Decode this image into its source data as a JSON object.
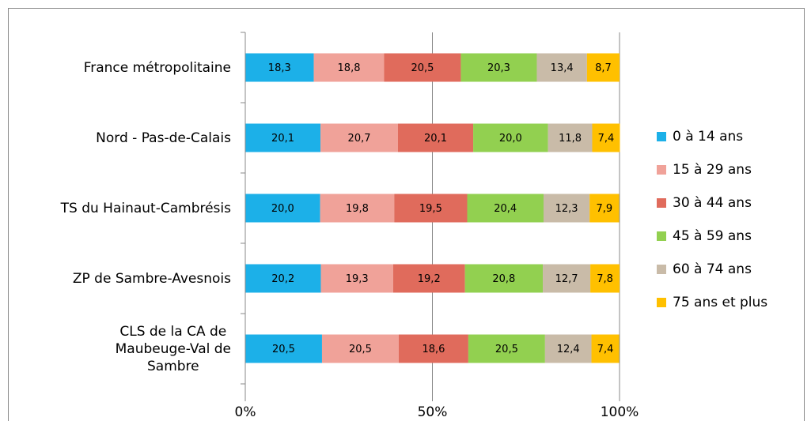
{
  "chart_data": {
    "type": "stacked_bar_horizontal",
    "categories": [
      "France métropolitaine",
      "Nord - Pas-de-Calais",
      "TS du Hainaut-Cambrésis",
      "ZP de Sambre-Avesnois",
      "CLS de la CA de\nMaubeuge-Val de\nSambre"
    ],
    "series": [
      {
        "name": "0 à 14 ans",
        "color": "#1cb0e8",
        "values": [
          18.3,
          20.1,
          20.0,
          20.2,
          20.5
        ],
        "value_labels": [
          "18,3",
          "20,1",
          "20,0",
          "20,2",
          "20,5"
        ]
      },
      {
        "name": "15 à 29 ans",
        "color": "#f0a299",
        "values": [
          18.8,
          20.7,
          19.8,
          19.3,
          20.5
        ],
        "value_labels": [
          "18,8",
          "20,7",
          "19,8",
          "19,3",
          "20,5"
        ]
      },
      {
        "name": "30 à 44 ans",
        "color": "#e06b5c",
        "values": [
          20.5,
          20.1,
          19.5,
          19.2,
          18.6
        ],
        "value_labels": [
          "20,5",
          "20,1",
          "19,5",
          "19,2",
          "18,6"
        ]
      },
      {
        "name": "45 à 59 ans",
        "color": "#92d050",
        "values": [
          20.3,
          20.0,
          20.4,
          20.8,
          20.5
        ],
        "value_labels": [
          "20,3",
          "20,0",
          "20,4",
          "20,8",
          "20,5"
        ]
      },
      {
        "name": "60 à 74 ans",
        "color": "#c9bba8",
        "values": [
          13.4,
          11.8,
          12.3,
          12.7,
          12.4
        ],
        "value_labels": [
          "13,4",
          "11,8",
          "12,3",
          "12,7",
          "12,4"
        ]
      },
      {
        "name": "75 ans et plus",
        "color": "#ffc000",
        "values": [
          8.7,
          7.4,
          7.9,
          7.8,
          7.4
        ],
        "value_labels": [
          "8,7",
          "7,4",
          "7,9",
          "7,8",
          "7,4"
        ]
      }
    ],
    "xlim": [
      0,
      100
    ],
    "xticks": [
      {
        "value": 0,
        "label": "0%"
      },
      {
        "value": 50,
        "label": "50%"
      },
      {
        "value": 100,
        "label": "100%"
      }
    ],
    "grid": true,
    "legend": "right"
  }
}
